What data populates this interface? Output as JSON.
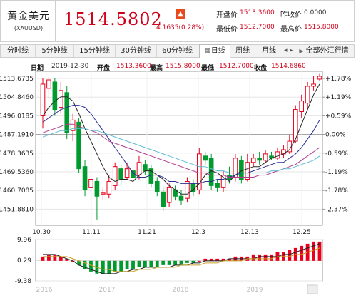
{
  "quote": {
    "name": "黄金美元",
    "code": "(XAUUSD)",
    "price": "1514.5802",
    "change": "4.1635(0.28%)",
    "arrow_icon": "up-arrow-icon",
    "open_label": "开盘价",
    "open_value": "1513.3600",
    "prev_close_label": "昨收价",
    "prev_close_value": "0.0000",
    "low_label": "最低价",
    "low_value": "1512.7000",
    "high_label": "最高价",
    "high_value": "1515.8000"
  },
  "tabs": [
    "分时线",
    "5分钟线",
    "15分钟线",
    "30分钟线",
    "60分钟线",
    "日线",
    "周线",
    "月线"
  ],
  "active_tab": "日线",
  "all_button": "全部外汇行情",
  "info": {
    "date_label": "日期",
    "date_value": "2019-12-30",
    "open_label": "开盘",
    "open_value": "1513.3600",
    "high_label": "最高",
    "high_value": "1515.8000",
    "low_label": "最低",
    "low_value": "1512.7000",
    "close_label": "收盘",
    "close_value": "1514.6860"
  },
  "colors": {
    "up": "#e8001c",
    "down": "#009a2e",
    "ma5": "#262626",
    "ma10": "#2e3190",
    "ma20": "#b03a8e",
    "ma30": "#60bcd6"
  },
  "chart_data": {
    "type": "candlestick",
    "y_axis_left": [
      "1513.6735",
      "1504.8460",
      "1496.0185",
      "1487.1910",
      "1478.3635",
      "1469.5360",
      "1460.7085",
      "1451.8810"
    ],
    "y_axis_right": [
      "+1.78%",
      "+1.19%",
      "+0.59%",
      "0.00%",
      "-0.59%",
      "-1.19%",
      "-1.78%",
      "-2.37%"
    ],
    "x_axis": [
      "10.30",
      "11.11",
      "11.21",
      "12.3",
      "12.13",
      "12.25"
    ],
    "candles": [
      {
        "o": 1496,
        "c": 1511,
        "h": 1514,
        "l": 1490
      },
      {
        "o": 1509,
        "c": 1513,
        "h": 1515,
        "l": 1504
      },
      {
        "o": 1512,
        "c": 1499,
        "h": 1514,
        "l": 1496
      },
      {
        "o": 1500,
        "c": 1508,
        "h": 1512,
        "l": 1497
      },
      {
        "o": 1507,
        "c": 1488,
        "h": 1510,
        "l": 1485
      },
      {
        "o": 1489,
        "c": 1494,
        "h": 1497,
        "l": 1484
      },
      {
        "o": 1493,
        "c": 1471,
        "h": 1495,
        "l": 1469
      },
      {
        "o": 1472,
        "c": 1461,
        "h": 1475,
        "l": 1458
      },
      {
        "o": 1462,
        "c": 1466,
        "h": 1469,
        "l": 1455
      },
      {
        "o": 1465,
        "c": 1458,
        "h": 1467,
        "l": 1447
      },
      {
        "o": 1459,
        "c": 1459.5,
        "h": 1462,
        "l": 1456
      },
      {
        "o": 1459,
        "c": 1465,
        "h": 1468,
        "l": 1457
      },
      {
        "o": 1463,
        "c": 1472,
        "h": 1474,
        "l": 1461
      },
      {
        "o": 1471,
        "c": 1466,
        "h": 1473,
        "l": 1463
      },
      {
        "o": 1467,
        "c": 1471,
        "h": 1474,
        "l": 1466
      },
      {
        "o": 1470,
        "c": 1467,
        "h": 1472,
        "l": 1460
      },
      {
        "o": 1468,
        "c": 1474,
        "h": 1477,
        "l": 1466
      },
      {
        "o": 1473,
        "c": 1470,
        "h": 1475,
        "l": 1468
      },
      {
        "o": 1471,
        "c": 1464,
        "h": 1473,
        "l": 1462
      },
      {
        "o": 1465,
        "c": 1460,
        "h": 1467,
        "l": 1458
      },
      {
        "o": 1460,
        "c": 1453,
        "h": 1462,
        "l": 1451
      },
      {
        "o": 1455,
        "c": 1462,
        "h": 1464,
        "l": 1453
      },
      {
        "o": 1461,
        "c": 1458,
        "h": 1463,
        "l": 1456
      },
      {
        "o": 1458,
        "c": 1456,
        "h": 1461,
        "l": 1454
      },
      {
        "o": 1457,
        "c": 1465,
        "h": 1467,
        "l": 1455
      },
      {
        "o": 1464,
        "c": 1460,
        "h": 1466,
        "l": 1458
      },
      {
        "o": 1461,
        "c": 1478,
        "h": 1481,
        "l": 1459
      },
      {
        "o": 1477,
        "c": 1475,
        "h": 1479,
        "l": 1473
      },
      {
        "o": 1476,
        "c": 1463,
        "h": 1478,
        "l": 1461
      },
      {
        "o": 1464,
        "c": 1462,
        "h": 1466,
        "l": 1460
      },
      {
        "o": 1462,
        "c": 1468,
        "h": 1470,
        "l": 1460
      },
      {
        "o": 1468,
        "c": 1466,
        "h": 1472,
        "l": 1464
      },
      {
        "o": 1467,
        "c": 1476,
        "h": 1478,
        "l": 1465
      },
      {
        "o": 1475,
        "c": 1466,
        "h": 1477,
        "l": 1464
      },
      {
        "o": 1466,
        "c": 1474,
        "h": 1478,
        "l": 1465
      },
      {
        "o": 1474,
        "c": 1476,
        "h": 1478,
        "l": 1472
      },
      {
        "o": 1476,
        "c": 1475,
        "h": 1479,
        "l": 1473
      },
      {
        "o": 1475,
        "c": 1478,
        "h": 1480,
        "l": 1474
      },
      {
        "o": 1477,
        "c": 1476,
        "h": 1479,
        "l": 1475
      },
      {
        "o": 1476,
        "c": 1479,
        "h": 1481,
        "l": 1475
      },
      {
        "o": 1478,
        "c": 1480,
        "h": 1482,
        "l": 1476
      },
      {
        "o": 1479,
        "c": 1484,
        "h": 1487,
        "l": 1478
      },
      {
        "o": 1484,
        "c": 1499,
        "h": 1501,
        "l": 1483
      },
      {
        "o": 1498,
        "c": 1503,
        "h": 1506,
        "l": 1495
      },
      {
        "o": 1502,
        "c": 1510,
        "h": 1512,
        "l": 1499
      },
      {
        "o": 1510,
        "c": 1511,
        "h": 1515,
        "l": 1508
      },
      {
        "o": 1513.36,
        "c": 1514.69,
        "h": 1515.8,
        "l": 1512.7
      }
    ],
    "ma_series": [
      {
        "values": [
          1496,
          1500,
          1503,
          1505,
          1505,
          1503,
          1497,
          1490,
          1484,
          1478,
          1472,
          1467,
          1465,
          1466,
          1466,
          1465,
          1468,
          1470,
          1470,
          1468,
          1466,
          1463,
          1461,
          1459,
          1459,
          1461,
          1464,
          1468,
          1470,
          1469,
          1467,
          1465,
          1468,
          1470,
          1471,
          1472,
          1472,
          1474,
          1476,
          1477,
          1478,
          1480,
          1485,
          1492,
          1499,
          1506,
          1511
        ]
      },
      {
        "values": [
          1493,
          1495,
          1497,
          1499,
          1500,
          1501,
          1501,
          1500,
          1497,
          1493,
          1489,
          1485,
          1481,
          1477,
          1473,
          1469,
          1467,
          1467,
          1468,
          1468,
          1467,
          1465,
          1465,
          1464,
          1464,
          1464,
          1464,
          1465,
          1465,
          1466,
          1466,
          1467,
          1468,
          1469,
          1469,
          1470,
          1471,
          1472,
          1473,
          1474,
          1474,
          1476,
          1478,
          1481,
          1485,
          1489,
          1494
        ]
      },
      {
        "values": [
          1488,
          1489,
          1490,
          1491,
          1492,
          1492,
          1491,
          1490,
          1489,
          1488,
          1486,
          1484,
          1483,
          1482,
          1481,
          1480,
          1479,
          1478,
          1477,
          1476,
          1475,
          1474,
          1473,
          1472,
          1471,
          1470,
          1469,
          1469,
          1468,
          1468,
          1468,
          1467,
          1467,
          1467,
          1467,
          1467,
          1468,
          1468,
          1469,
          1470,
          1471,
          1472,
          1473,
          1475,
          1477,
          1479,
          1481
        ]
      },
      {
        "values": [
          1486,
          1487,
          1488,
          1489,
          1489,
          1490,
          1490,
          1490,
          1489,
          1489,
          1488,
          1487,
          1486,
          1485,
          1484,
          1483,
          1482,
          1481,
          1480,
          1479,
          1478,
          1477,
          1476,
          1475,
          1474,
          1473,
          1472,
          1472,
          1471,
          1470,
          1470,
          1469,
          1469,
          1469,
          1469,
          1469,
          1469,
          1469,
          1470,
          1470,
          1471,
          1471,
          1472,
          1473,
          1474,
          1475,
          1477
        ]
      }
    ],
    "macd": {
      "y_axis": [
        "9.96",
        "0.29",
        "-9.38"
      ],
      "bars": [
        2,
        3,
        3,
        2,
        1,
        0,
        -2,
        -4,
        -5,
        -6,
        -6,
        -6,
        -5,
        -5,
        -4,
        -4,
        -3,
        -3,
        -3,
        -3,
        -2,
        -2,
        -2,
        -2,
        -1,
        -1,
        0,
        1,
        1,
        1,
        1,
        1,
        2,
        2,
        2,
        3,
        3,
        3,
        3,
        4,
        4,
        5,
        6,
        7,
        8,
        9,
        9
      ],
      "dif": [
        3,
        3,
        3,
        2,
        1,
        0,
        -2,
        -3,
        -4,
        -5,
        -6,
        -6,
        -6,
        -5,
        -5,
        -4,
        -4,
        -3,
        -3,
        -3,
        -3,
        -3,
        -2,
        -2,
        -2,
        -1,
        -1,
        0,
        0,
        0,
        0,
        1,
        1,
        1,
        1,
        1,
        2,
        2,
        2,
        2,
        3,
        3,
        4,
        5,
        6,
        7,
        8
      ],
      "dea": [
        2,
        2,
        2,
        2,
        2,
        1,
        0,
        -1,
        -2,
        -3,
        -4,
        -4,
        -5,
        -5,
        -5,
        -5,
        -4,
        -4,
        -4,
        -3,
        -3,
        -3,
        -3,
        -2,
        -2,
        -2,
        -2,
        -1,
        -1,
        -1,
        0,
        0,
        0,
        0,
        1,
        1,
        1,
        1,
        1,
        2,
        2,
        2,
        3,
        3,
        4,
        5,
        6
      ]
    },
    "macd_x_axis": [
      "2016",
      "2017",
      "2018",
      "2019"
    ]
  }
}
